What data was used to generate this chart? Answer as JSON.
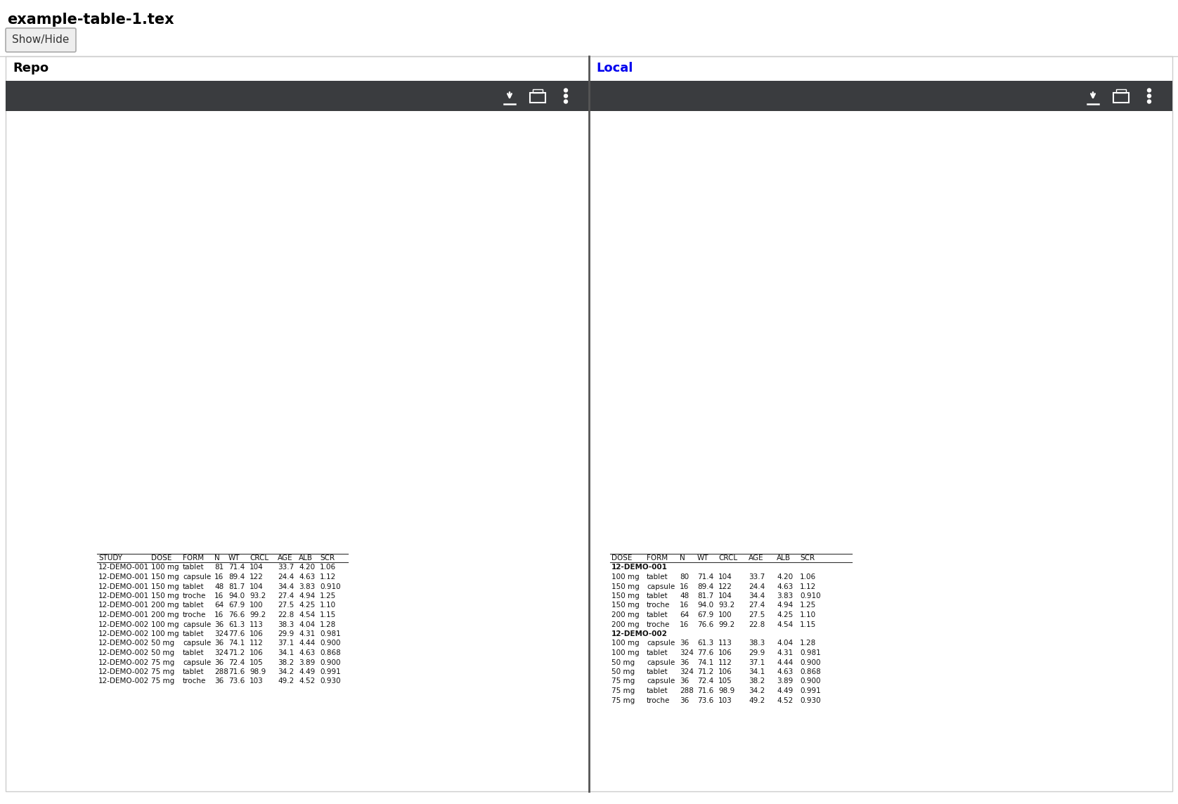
{
  "title": "example-table-1.tex",
  "show_hide_btn": "Show/Hide",
  "repo_label": "Repo",
  "local_label": "Local",
  "bg_color": "#ffffff",
  "dark_bar_color": "#3a3c3f",
  "border_color": "#cccccc",
  "divider_color": "#666666",
  "text_color": "#111111",
  "local_label_color": "#0000ee",
  "repo_label_color": "#000000",
  "title_fontsize": 15,
  "label_fontsize": 13,
  "table_fontsize": 7.5,
  "left_headers": [
    "STUDY",
    "DOSE",
    "FORM",
    "N",
    "WT",
    "CRCL",
    "AGE",
    "ALB",
    "SCR"
  ],
  "left_rows": [
    [
      "12-DEMO-001",
      "100 mg",
      "tablet",
      "81",
      "71.4",
      "104",
      "33.7",
      "4.20",
      "1.06"
    ],
    [
      "12-DEMO-001",
      "150 mg",
      "capsule",
      "16",
      "89.4",
      "122",
      "24.4",
      "4.63",
      "1.12"
    ],
    [
      "12-DEMO-001",
      "150 mg",
      "tablet",
      "48",
      "81.7",
      "104",
      "34.4",
      "3.83",
      "0.910"
    ],
    [
      "12-DEMO-001",
      "150 mg",
      "troche",
      "16",
      "94.0",
      "93.2",
      "27.4",
      "4.94",
      "1.25"
    ],
    [
      "12-DEMO-001",
      "200 mg",
      "tablet",
      "64",
      "67.9",
      "100",
      "27.5",
      "4.25",
      "1.10"
    ],
    [
      "12-DEMO-001",
      "200 mg",
      "troche",
      "16",
      "76.6",
      "99.2",
      "22.8",
      "4.54",
      "1.15"
    ],
    [
      "12-DEMO-002",
      "100 mg",
      "capsule",
      "36",
      "61.3",
      "113",
      "38.3",
      "4.04",
      "1.28"
    ],
    [
      "12-DEMO-002",
      "100 mg",
      "tablet",
      "324",
      "77.6",
      "106",
      "29.9",
      "4.31",
      "0.981"
    ],
    [
      "12-DEMO-002",
      "50 mg",
      "capsule",
      "36",
      "74.1",
      "112",
      "37.1",
      "4.44",
      "0.900"
    ],
    [
      "12-DEMO-002",
      "50 mg",
      "tablet",
      "324",
      "71.2",
      "106",
      "34.1",
      "4.63",
      "0.868"
    ],
    [
      "12-DEMO-002",
      "75 mg",
      "capsule",
      "36",
      "72.4",
      "105",
      "38.2",
      "3.89",
      "0.900"
    ],
    [
      "12-DEMO-002",
      "75 mg",
      "tablet",
      "288",
      "71.6",
      "98.9",
      "34.2",
      "4.49",
      "0.991"
    ],
    [
      "12-DEMO-002",
      "75 mg",
      "troche",
      "36",
      "73.6",
      "103",
      "49.2",
      "4.52",
      "0.930"
    ]
  ],
  "right_headers": [
    "DOSE",
    "FORM",
    "N",
    "WT",
    "CRCL",
    "AGE",
    "ALB",
    "SCR"
  ],
  "right_groups": [
    {
      "group_label": "12-DEMO-001",
      "rows": [
        [
          "100 mg",
          "tablet",
          "80",
          "71.4",
          "104",
          "33.7",
          "4.20",
          "1.06"
        ],
        [
          "150 mg",
          "capsule",
          "16",
          "89.4",
          "122",
          "24.4",
          "4.63",
          "1.12"
        ],
        [
          "150 mg",
          "tablet",
          "48",
          "81.7",
          "104",
          "34.4",
          "3.83",
          "0.910"
        ],
        [
          "150 mg",
          "troche",
          "16",
          "94.0",
          "93.2",
          "27.4",
          "4.94",
          "1.25"
        ],
        [
          "200 mg",
          "tablet",
          "64",
          "67.9",
          "100",
          "27.5",
          "4.25",
          "1.10"
        ],
        [
          "200 mg",
          "troche",
          "16",
          "76.6",
          "99.2",
          "22.8",
          "4.54",
          "1.15"
        ]
      ]
    },
    {
      "group_label": "12-DEMO-002",
      "rows": [
        [
          "100 mg",
          "capsule",
          "36",
          "61.3",
          "113",
          "38.3",
          "4.04",
          "1.28"
        ],
        [
          "100 mg",
          "tablet",
          "324",
          "77.6",
          "106",
          "29.9",
          "4.31",
          "0.981"
        ],
        [
          "50 mg",
          "capsule",
          "36",
          "74.1",
          "112",
          "37.1",
          "4.44",
          "0.900"
        ],
        [
          "50 mg",
          "tablet",
          "324",
          "71.2",
          "106",
          "34.1",
          "4.63",
          "0.868"
        ],
        [
          "75 mg",
          "capsule",
          "36",
          "72.4",
          "105",
          "38.2",
          "3.89",
          "0.900"
        ],
        [
          "75 mg",
          "tablet",
          "288",
          "71.6",
          "98.9",
          "34.2",
          "4.49",
          "0.991"
        ],
        [
          "75 mg",
          "troche",
          "36",
          "73.6",
          "103",
          "49.2",
          "4.52",
          "0.930"
        ]
      ]
    }
  ]
}
